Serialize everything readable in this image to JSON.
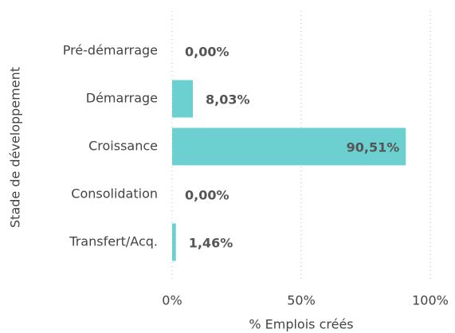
{
  "chart_data": {
    "type": "hbar",
    "categories": [
      "Pré-démarrage",
      "Démarrage",
      "Croissance",
      "Consolidation",
      "Transfert/Acq."
    ],
    "values": [
      0,
      8.03,
      90.51,
      0,
      1.46
    ],
    "value_labels": [
      "0,00%",
      "8,03%",
      "90,51%",
      "0,00%",
      "1,46%"
    ],
    "color": "#6dd0d0",
    "xlabel": "% Emplois créés",
    "ylabel": "Stade de développement",
    "xlim": [
      0,
      100
    ],
    "xticks": [
      {
        "value": 0,
        "label": "0%"
      },
      {
        "value": 50,
        "label": "50%"
      },
      {
        "value": 100,
        "label": "100%"
      }
    ],
    "grid": true
  }
}
